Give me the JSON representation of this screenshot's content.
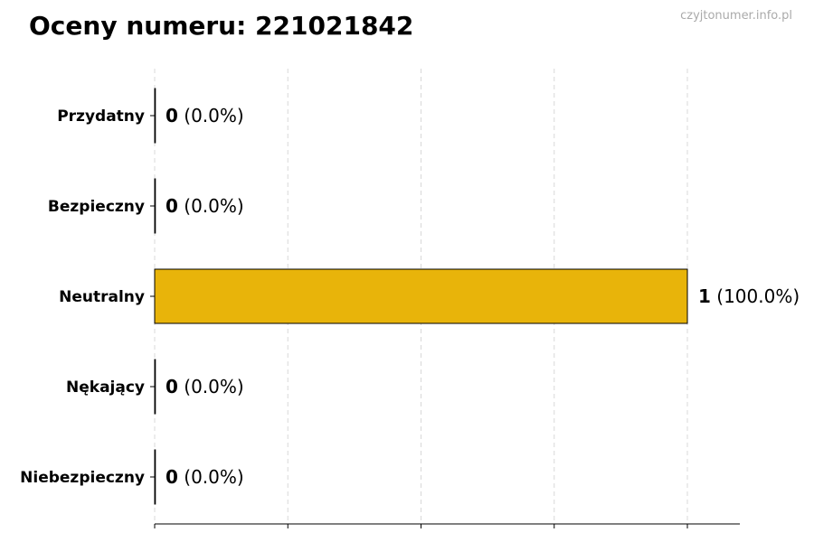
{
  "chart_data": {
    "type": "bar",
    "orientation": "horizontal",
    "title": "Oceny numeru: 221021842",
    "watermark": "czyjtonumer.info.pl",
    "categories": [
      "Przydatny",
      "Bezpieczny",
      "Neutralny",
      "Nękający",
      "Niebezpieczny"
    ],
    "values": [
      0,
      0,
      1,
      0,
      0
    ],
    "data_labels": [
      {
        "count": "0",
        "pct": "(0.0%)"
      },
      {
        "count": "0",
        "pct": "(0.0%)"
      },
      {
        "count": "1",
        "pct": "(100.0%)"
      },
      {
        "count": "0",
        "pct": "(0.0%)"
      },
      {
        "count": "0",
        "pct": "(0.0%)"
      }
    ],
    "xlim": [
      0,
      1.1
    ],
    "xticks": [
      0,
      0.25,
      0.5,
      0.75,
      1.0
    ],
    "xtick_labels_visible": false,
    "grid": "x, dashed",
    "bar_color": "#E8B40A",
    "xlabel": "",
    "ylabel": ""
  }
}
